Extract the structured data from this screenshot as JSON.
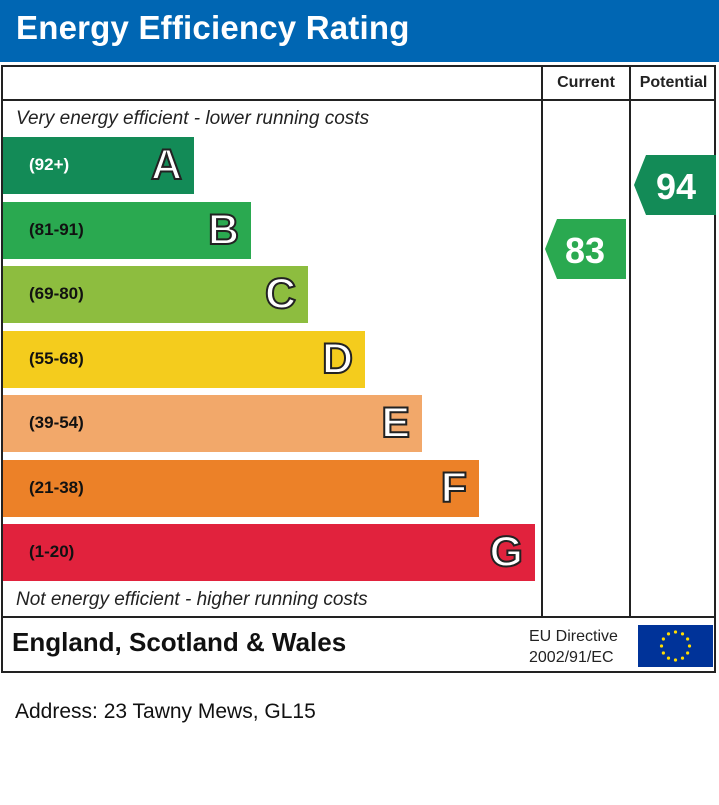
{
  "header": {
    "title": "Energy Efficiency Rating"
  },
  "columns": {
    "current": "Current",
    "potential": "Potential"
  },
  "captions": {
    "top": "Very energy efficient - lower running costs",
    "bottom": "Not energy efficient - higher running costs"
  },
  "chart_data": {
    "type": "bar",
    "title": "Energy Efficiency Rating",
    "categories": [
      "A",
      "B",
      "C",
      "D",
      "E",
      "F",
      "G"
    ],
    "ranges": [
      "(92+)",
      "(81-91)",
      "(69-80)",
      "(55-68)",
      "(39-54)",
      "(21-38)",
      "(1-20)"
    ],
    "colors": [
      "#138b57",
      "#2aa950",
      "#8dbd3f",
      "#f4cc1d",
      "#f2a86a",
      "#ec8128",
      "#e1223d"
    ],
    "current": {
      "value": 83,
      "band": "B",
      "color": "#2aa950"
    },
    "potential": {
      "value": 94,
      "band": "A",
      "color": "#138b57"
    }
  },
  "footer": {
    "region": "England, Scotland & Wales",
    "directive_line1": "EU Directive",
    "directive_line2": "2002/91/EC"
  },
  "address": "Address: 23 Tawny Mews, GL15"
}
